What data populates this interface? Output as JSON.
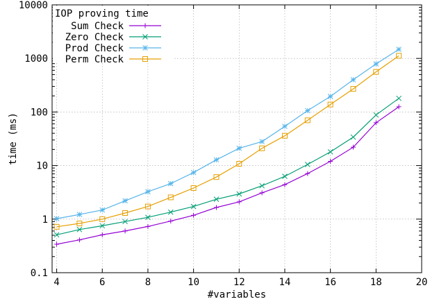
{
  "chart_data": {
    "type": "line",
    "title": "",
    "xlabel": "#variables",
    "ylabel": "time (ms)",
    "xlim": [
      3.8,
      20
    ],
    "ylim": [
      0.1,
      10000
    ],
    "yscale": "log",
    "grid": true,
    "legend_title": "IOP proving time",
    "legend_position": "top-left",
    "x_ticks": [
      4,
      6,
      8,
      10,
      12,
      14,
      16,
      18,
      20
    ],
    "x_tick_labels": [
      "4",
      "6",
      "8",
      "10",
      "12",
      "14",
      "16",
      "18",
      "20"
    ],
    "y_ticks": [
      0.1,
      1,
      10,
      100,
      1000,
      10000
    ],
    "y_tick_labels": [
      "0.1",
      "1",
      "10",
      "100",
      "1000",
      "10000"
    ],
    "x": [
      4,
      5,
      6,
      7,
      8,
      9,
      10,
      11,
      12,
      13,
      14,
      15,
      16,
      17,
      18,
      19
    ],
    "series": [
      {
        "name": "Sum Check",
        "color": "#9400d3",
        "marker": "plus",
        "values": [
          0.34,
          0.41,
          0.51,
          0.6,
          0.73,
          0.92,
          1.18,
          1.65,
          2.1,
          3.1,
          4.4,
          7.1,
          12,
          22,
          63,
          125
        ]
      },
      {
        "name": "Zero Check",
        "color": "#009e73",
        "marker": "cross",
        "values": [
          0.51,
          0.64,
          0.75,
          0.9,
          1.08,
          1.35,
          1.72,
          2.35,
          2.95,
          4.2,
          6.3,
          10.5,
          18,
          34,
          88,
          180
        ]
      },
      {
        "name": "Prod Check",
        "color": "#56b4e9",
        "marker": "star",
        "values": [
          1.02,
          1.22,
          1.48,
          2.2,
          3.25,
          4.6,
          7.4,
          12.8,
          21,
          28,
          54,
          106,
          195,
          400,
          790,
          1480
        ]
      },
      {
        "name": "Perm Check",
        "color": "#e69f00",
        "marker": "square",
        "values": [
          0.72,
          0.83,
          1.0,
          1.3,
          1.72,
          2.55,
          3.8,
          6.1,
          10.8,
          21,
          36,
          70,
          138,
          270,
          560,
          1120
        ]
      }
    ]
  }
}
